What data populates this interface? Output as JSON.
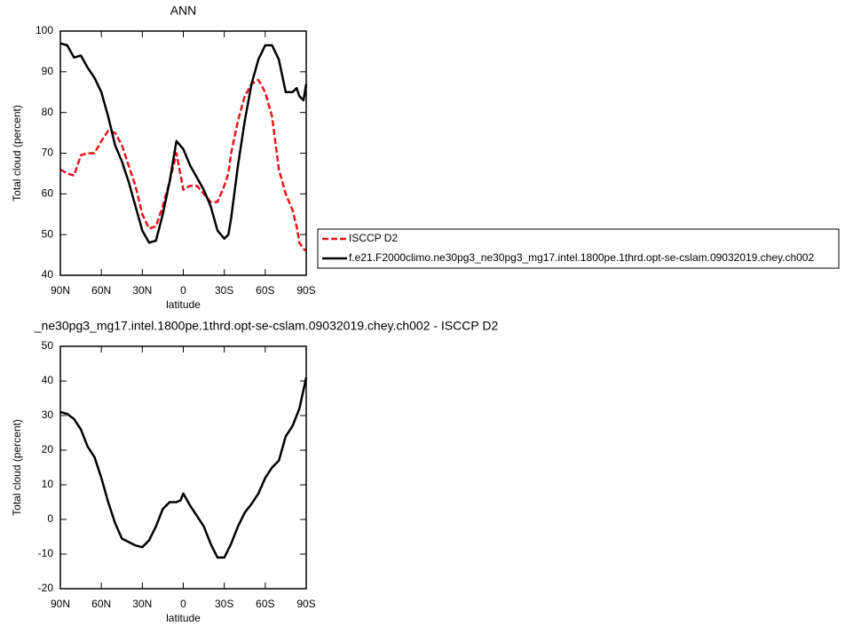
{
  "chart_data": [
    {
      "type": "line",
      "title": "ANN",
      "x_label": "latitude",
      "y_label": "Total cloud (percent)",
      "x": [
        90,
        85,
        80,
        75,
        70,
        65,
        60,
        55,
        50,
        45,
        40,
        35,
        30,
        25,
        20,
        15,
        10,
        5,
        0,
        -5,
        -10,
        -15,
        -20,
        -25,
        -30,
        -33,
        -35,
        -40,
        -45,
        -50,
        -55,
        -60,
        -65,
        -70,
        -75,
        -80,
        -83,
        -85,
        -88,
        -90
      ],
      "series": [
        {
          "name": "ISCCP D2",
          "color": "#e8141c",
          "dashed": true,
          "values": [
            66,
            65,
            64.5,
            69.5,
            70,
            70,
            73,
            75.5,
            75,
            72,
            67,
            62,
            55,
            51.5,
            52,
            57,
            63,
            70,
            61,
            62,
            62,
            60,
            58,
            58,
            62,
            65,
            70,
            78,
            84,
            87,
            88,
            85,
            79,
            66,
            60,
            56,
            52,
            48,
            46.5,
            46
          ]
        },
        {
          "name": "f.e21.F2000climo.ne30pg3_ne30pg3_mg17.intel.1800pe.1thrd.opt-se-cslam.09032019.chey.ch002",
          "color": "#000000",
          "dashed": false,
          "values": [
            97,
            96.5,
            93.5,
            94,
            91,
            88.5,
            85,
            79,
            72,
            68,
            63,
            57,
            51,
            48,
            48.5,
            55,
            63,
            73,
            71,
            67,
            64,
            61,
            57,
            51,
            49,
            50,
            54,
            67,
            78,
            87,
            93,
            96.5,
            96.5,
            93,
            85,
            85,
            86,
            84,
            83,
            87
          ]
        }
      ],
      "xlim": [
        90,
        -90
      ],
      "ylim": [
        40,
        100
      ],
      "xticks": [
        {
          "value": 90,
          "label": "90N"
        },
        {
          "value": 60,
          "label": "60N"
        },
        {
          "value": 30,
          "label": "30N"
        },
        0,
        {
          "value": -30,
          "label": "30S"
        },
        {
          "value": -60,
          "label": "60S"
        },
        {
          "value": -90,
          "label": "90S"
        }
      ],
      "yticks": [
        40,
        50,
        60,
        70,
        80,
        90,
        100
      ],
      "legend": "outside-right"
    },
    {
      "type": "line",
      "title": "_ne30pg3_mg17.intel.1800pe.1thrd.opt-se-cslam.09032019.chey.ch002 - ISCCP D2",
      "x_label": "latitude",
      "y_label": "Total cloud (percent)",
      "x": [
        90,
        85,
        80,
        75,
        70,
        65,
        60,
        55,
        50,
        45,
        40,
        35,
        30,
        25,
        20,
        15,
        10,
        5,
        2,
        0,
        -5,
        -10,
        -15,
        -20,
        -25,
        -30,
        -35,
        -40,
        -45,
        -50,
        -55,
        -60,
        -65,
        -70,
        -75,
        -80,
        -85,
        -90
      ],
      "series": [
        {
          "color": "#000000",
          "dashed": false,
          "values": [
            31,
            30.5,
            29,
            26,
            21,
            18,
            12,
            5,
            -1,
            -5.5,
            -6.5,
            -7.5,
            -8,
            -6,
            -2,
            3,
            5,
            5,
            5.5,
            7.5,
            4,
            1,
            -2,
            -7,
            -11,
            -11,
            -7,
            -2,
            2,
            4.5,
            7.5,
            12,
            15,
            17,
            24,
            27,
            32,
            41
          ]
        }
      ],
      "xlim": [
        90,
        -90
      ],
      "ylim": [
        -20,
        50
      ],
      "xticks": [
        {
          "value": 90,
          "label": "90N"
        },
        {
          "value": 60,
          "label": "60N"
        },
        {
          "value": 30,
          "label": "30N"
        },
        0,
        {
          "value": -30,
          "label": "30S"
        },
        {
          "value": -60,
          "label": "60S"
        },
        {
          "value": -90,
          "label": "90S"
        }
      ],
      "yticks": [
        -20,
        -10,
        0,
        10,
        20,
        30,
        40,
        50
      ]
    }
  ]
}
